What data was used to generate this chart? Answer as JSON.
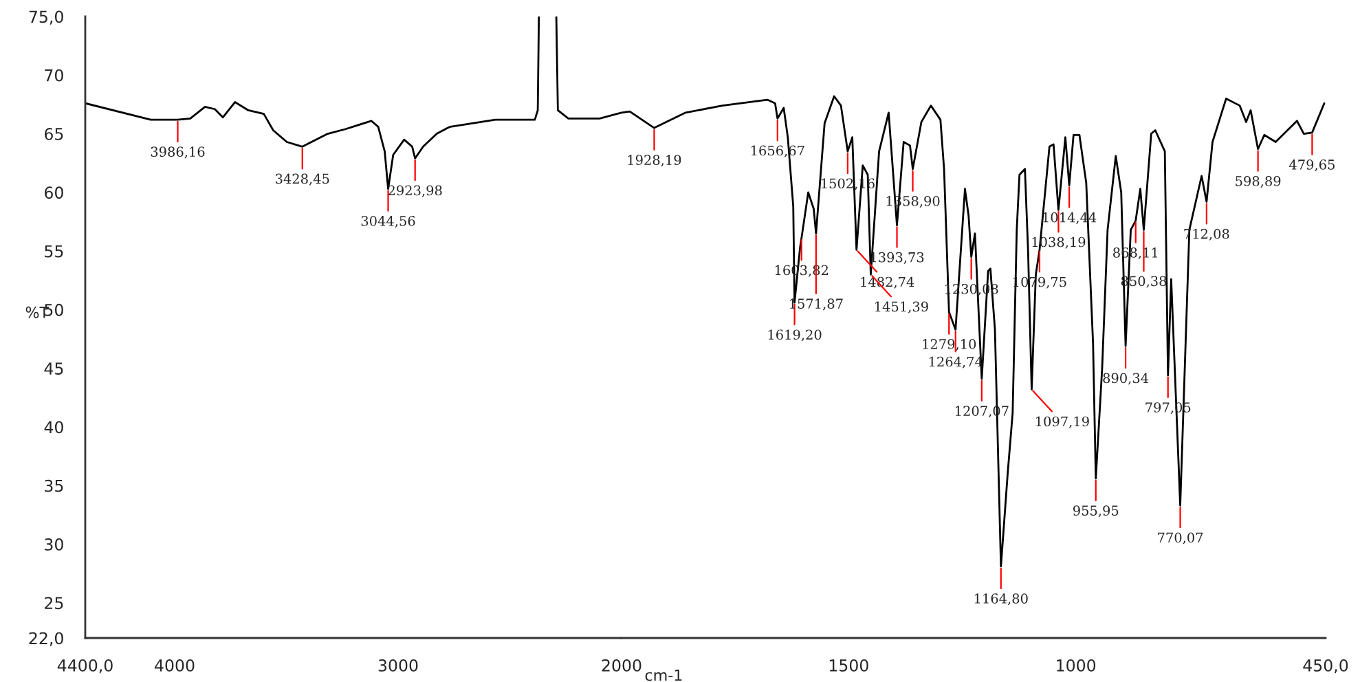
{
  "chart_data": [
    {
      "type": "line",
      "ylabel": "%T",
      "xlim": [
        4400,
        2000
      ],
      "ylim": [
        22,
        75
      ],
      "xticks": [
        {
          "value": 4400,
          "label": "4400,0"
        },
        4000,
        3000,
        2000
      ],
      "yticks": [
        {
          "value": 22,
          "label": "22,0"
        },
        25,
        30,
        35,
        40,
        45,
        50,
        55,
        60,
        65,
        70,
        {
          "value": 75,
          "label": "75,0"
        }
      ],
      "series": [
        {
          "color": "#000000",
          "x": [
            4400,
            4107,
            3986.16,
            3930,
            3864,
            3820,
            3784,
            3730,
            3670,
            3601,
            3559,
            3498,
            3428.45,
            3315,
            3235,
            3120,
            3089,
            3060,
            3044.56,
            3022,
            2973,
            2937,
            2923.98,
            2888,
            2827,
            2778,
            2766,
            2565,
            2388,
            2375,
            2370,
            2330,
            2292,
            2285,
            2238,
            2098,
            2000
          ],
          "values": [
            67.6,
            66.2,
            66.2,
            66.3,
            67.3,
            67.1,
            66.4,
            67.7,
            67.0,
            66.7,
            65.3,
            64.3,
            63.9,
            65.0,
            65.4,
            66.1,
            65.6,
            63.5,
            60.3,
            63.2,
            64.5,
            63.9,
            62.9,
            63.9,
            65.0,
            65.5,
            65.6,
            66.2,
            66.2,
            67.0,
            75,
            null,
            75,
            67.0,
            66.3,
            66.3,
            66.8
          ]
        }
      ],
      "annotations": [
        {
          "text": "3986,16",
          "x": 3986.16,
          "y": 66.2
        },
        {
          "text": "3428,45",
          "x": 3428.45,
          "y": 63.9
        },
        {
          "text": "3044,56",
          "x": 3044.56,
          "y": 60.3
        },
        {
          "text": "2923,98",
          "x": 2923.98,
          "y": 62.9
        }
      ]
    },
    {
      "type": "line",
      "xlabel": "cm-1",
      "tick_labels": "x",
      "xlim": [
        2000,
        450
      ],
      "ylim": [
        22,
        75
      ],
      "xticks": [
        1500,
        1000,
        {
          "value": 450,
          "label": "450,0"
        }
      ],
      "series": [
        {
          "color": "#000000",
          "x": [
            2000,
            1982,
            1928.19,
            1859,
            1778,
            1679,
            1662,
            1656.67,
            1643,
            1634,
            1622,
            1619.2,
            1607,
            1603.82,
            1589,
            1577,
            1571.87,
            1553,
            1532,
            1517,
            1502.16,
            1492,
            1482.74,
            1469,
            1458,
            1451.39,
            1433,
            1412,
            1393.73,
            1379,
            1365,
            1358.9,
            1340,
            1319,
            1298,
            1290,
            1279.1,
            1264.74,
            1244,
            1236,
            1230.08,
            1222,
            1207.07,
            1193,
            1188,
            1178,
            1164.8,
            1150,
            1139,
            1130,
            1124,
            1112,
            1105,
            1097.19,
            1088,
            1079.75,
            1058,
            1049,
            1038.19,
            1023,
            1014.44,
            1005,
            992,
            977,
            962,
            955.95,
            942,
            930,
            912,
            900,
            890.34,
            879,
            868.11,
            858,
            850.38,
            834,
            825,
            804,
            797.05,
            790,
            770.07,
            750,
            723,
            712.08,
            699,
            669,
            639,
            625,
            615,
            598.89,
            585,
            560,
            534,
            513,
            498,
            479.65,
            453
          ],
          "values": [
            66.8,
            66.9,
            65.5,
            66.8,
            67.4,
            67.9,
            67.6,
            66.3,
            67.2,
            64.7,
            58.8,
            50.6,
            55.3,
            56.1,
            60.0,
            58.6,
            56.5,
            65.9,
            68.2,
            67.4,
            63.5,
            64.7,
            55.1,
            62.3,
            61.5,
            53.0,
            63.5,
            66.8,
            57.2,
            64.3,
            64.0,
            62.0,
            66.0,
            67.4,
            66.2,
            62.0,
            49.8,
            48.3,
            60.3,
            58.0,
            54.5,
            56.5,
            44.1,
            53.3,
            53.5,
            48.3,
            28.1,
            36.0,
            41.2,
            56.8,
            61.5,
            62.0,
            55.0,
            43.2,
            53.0,
            55.1,
            63.9,
            64.1,
            58.5,
            64.7,
            60.6,
            64.9,
            64.9,
            60.8,
            47.1,
            35.6,
            45.0,
            56.8,
            63.1,
            60.0,
            46.9,
            56.8,
            57.6,
            60.3,
            56.8,
            65.0,
            65.3,
            63.5,
            44.4,
            52.6,
            33.3,
            56.8,
            61.4,
            59.2,
            64.3,
            68.0,
            67.4,
            66.0,
            67.0,
            63.7,
            64.9,
            64.3,
            65.3,
            66.1,
            65.0,
            65.1,
            67.6
          ]
        }
      ],
      "annotations": [
        {
          "text": "1928,19",
          "x": 1928.19,
          "y": 65.5
        },
        {
          "text": "1656,67",
          "x": 1656.67,
          "y": 66.3
        },
        {
          "text": "1619,20",
          "x": 1619.2,
          "y": 50.6
        },
        {
          "text": "1603,82",
          "x": 1603.82,
          "y": 56.1
        },
        {
          "text": "1571,87",
          "x": 1571.87,
          "y": 56.5
        },
        {
          "text": "1502,16",
          "x": 1502.16,
          "y": 63.5
        },
        {
          "text": "1482,74",
          "x": 1482.74,
          "y": 55.1
        },
        {
          "text": "1451,39",
          "x": 1451.39,
          "y": 53.0
        },
        {
          "text": "1393,73",
          "x": 1393.73,
          "y": 57.2
        },
        {
          "text": "1358,90",
          "x": 1358.9,
          "y": 62.0
        },
        {
          "text": "1279,10",
          "x": 1279.1,
          "y": 49.8
        },
        {
          "text": "1264,74",
          "x": 1264.74,
          "y": 48.3
        },
        {
          "text": "1230,08",
          "x": 1230.08,
          "y": 54.5
        },
        {
          "text": "1207,07",
          "x": 1207.07,
          "y": 44.1
        },
        {
          "text": "1164,80",
          "x": 1164.8,
          "y": 28.1
        },
        {
          "text": "1097,19",
          "x": 1097.19,
          "y": 43.2
        },
        {
          "text": "1079,75",
          "x": 1079.75,
          "y": 55.1
        },
        {
          "text": "1038,19",
          "x": 1038.19,
          "y": 58.5
        },
        {
          "text": "1014,44",
          "x": 1014.44,
          "y": 60.6
        },
        {
          "text": "955,95",
          "x": 955.95,
          "y": 35.6
        },
        {
          "text": "890,34",
          "x": 890.34,
          "y": 46.9
        },
        {
          "text": "868,11",
          "x": 868.11,
          "y": 57.6
        },
        {
          "text": "850,38",
          "x": 850.38,
          "y": 56.8
        },
        {
          "text": "797,05",
          "x": 797.05,
          "y": 44.4
        },
        {
          "text": "770,07",
          "x": 770.07,
          "y": 33.3
        },
        {
          "text": "712,08",
          "x": 712.08,
          "y": 59.2
        },
        {
          "text": "598,89",
          "x": 598.89,
          "y": 63.7
        },
        {
          "text": "479,65",
          "x": 479.65,
          "y": 65.1
        }
      ]
    }
  ]
}
